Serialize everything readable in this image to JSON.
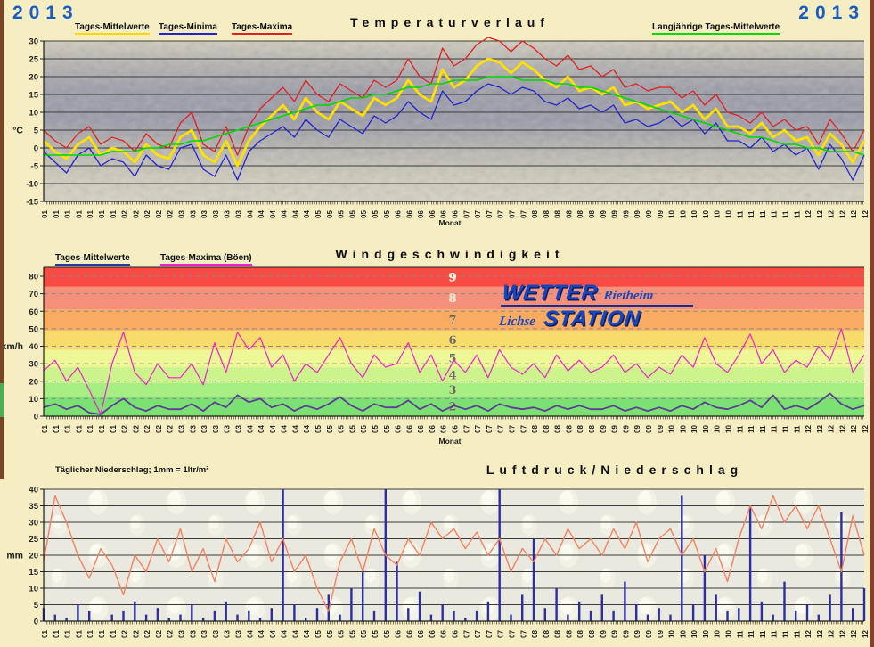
{
  "header": {
    "year_left": "2013",
    "year_right": "2013"
  },
  "titles": {
    "temperature": "Temperaturverlauf",
    "wind": "Windgeschwindigkeit",
    "pressure_precip": "Luftdruck/Niederschlag"
  },
  "legends": {
    "temp_mean": "Tages-Mittelwerte",
    "temp_min": "Tages-Minima",
    "temp_max": "Tages-Maxima",
    "temp_longterm": "Langjährige Tages-Mittelwerte",
    "wind_mean": "Tages-Mittelwerte",
    "wind_max": "Tages-Maxima (Böen)",
    "precip_note": "Täglicher Niederschlag; 1mm = 1ltr/m²"
  },
  "logo": {
    "top_main": "WETTER",
    "top_sub": "Rietheim",
    "bottom_sub": "Lichse",
    "bottom_main": "STATION"
  },
  "axis_labels": {
    "temp_y": "°C",
    "wind_y": "km/h",
    "precip_y": "mm",
    "x": "Monat"
  },
  "colors": {
    "accent_year": "#1a5cc4",
    "temp_max": "#e02020",
    "temp_min": "#2323cc",
    "temp_mean": "#ffe100",
    "temp_longterm": "#00d800",
    "wind_max": "#ee22cc",
    "wind_mean": "#5c3c94",
    "precip_bar": "#2d2da4",
    "pressure_line": "#f4825f"
  },
  "chart_data": {
    "x_tick_labels": [
      "01",
      "01",
      "01",
      "01",
      "01",
      "01",
      "01",
      "02",
      "02",
      "02",
      "02",
      "02",
      "03",
      "03",
      "03",
      "03",
      "03",
      "03",
      "04",
      "04",
      "04",
      "04",
      "04",
      "04",
      "05",
      "05",
      "05",
      "05",
      "05",
      "05",
      "05",
      "06",
      "06",
      "06",
      "06",
      "06",
      "06",
      "07",
      "07",
      "07",
      "07",
      "07",
      "07",
      "08",
      "08",
      "08",
      "08",
      "08",
      "08",
      "09",
      "09",
      "09",
      "09",
      "09",
      "09",
      "10",
      "10",
      "10",
      "10",
      "10",
      "10",
      "11",
      "11",
      "11",
      "11",
      "11",
      "11",
      "12",
      "12",
      "12",
      "12",
      "12",
      "12"
    ],
    "charts": [
      {
        "type": "line",
        "title": "Temperaturverlauf",
        "ylabel": "°C",
        "xlabel": "Monat",
        "ylim": [
          -15,
          30
        ],
        "ytick_step": 5,
        "series": [
          {
            "name": "Tages-Maxima",
            "color": "#e02020",
            "values": [
              5,
              2,
              0,
              4,
              6,
              1,
              3,
              2,
              -1,
              4,
              1,
              0,
              7,
              10,
              1,
              -1,
              6,
              -2,
              6,
              11,
              14,
              17,
              13,
              19,
              15,
              13,
              18,
              16,
              14,
              19,
              17,
              19,
              25,
              20,
              18,
              28,
              23,
              25,
              29,
              31,
              30,
              27,
              30,
              28,
              25,
              23,
              26,
              22,
              23,
              20,
              22,
              17,
              18,
              16,
              17,
              17,
              14,
              16,
              12,
              15,
              10,
              9,
              7,
              10,
              6,
              8,
              5,
              6,
              1,
              8,
              4,
              -1,
              5
            ]
          },
          {
            "name": "Tages-Minima",
            "color": "#2323cc",
            "values": [
              -1,
              -4,
              -7,
              -2,
              0,
              -5,
              -3,
              -4,
              -8,
              -2,
              -5,
              -6,
              0,
              1,
              -6,
              -8,
              -2,
              -9,
              -1,
              2,
              4,
              6,
              3,
              8,
              5,
              3,
              8,
              6,
              4,
              9,
              7,
              9,
              13,
              10,
              8,
              16,
              12,
              13,
              16,
              18,
              17,
              15,
              17,
              16,
              13,
              12,
              14,
              11,
              12,
              10,
              12,
              7,
              8,
              6,
              7,
              9,
              6,
              8,
              4,
              7,
              2,
              2,
              0,
              3,
              -1,
              1,
              -2,
              0,
              -6,
              1,
              -3,
              -9,
              -2
            ]
          },
          {
            "name": "Tages-Mittelwerte",
            "color": "#ffe100",
            "values": [
              2,
              -1,
              -3,
              1,
              3,
              -2,
              0,
              -1,
              -4,
              1,
              -2,
              -3,
              3,
              5,
              -2,
              -4,
              2,
              -5,
              2,
              6,
              9,
              12,
              8,
              14,
              10,
              8,
              13,
              11,
              9,
              14,
              12,
              14,
              19,
              15,
              13,
              22,
              17,
              19,
              23,
              25,
              24,
              21,
              24,
              22,
              19,
              17,
              20,
              16,
              17,
              15,
              17,
              12,
              13,
              11,
              12,
              13,
              10,
              12,
              8,
              11,
              6,
              6,
              4,
              7,
              3,
              5,
              2,
              3,
              -2,
              4,
              1,
              -4,
              2
            ]
          },
          {
            "name": "Langjährige Tages-Mittelwerte",
            "color": "#00d800",
            "values": [
              -2,
              -2,
              -2,
              -2,
              -2,
              -2,
              -1,
              -1,
              -1,
              0,
              0,
              1,
              1,
              2,
              2,
              3,
              4,
              5,
              6,
              7,
              8,
              9,
              10,
              11,
              12,
              12,
              13,
              14,
              14,
              15,
              15,
              16,
              17,
              17,
              18,
              18,
              19,
              19,
              19,
              20,
              20,
              20,
              19,
              19,
              19,
              18,
              18,
              17,
              17,
              16,
              15,
              14,
              13,
              12,
              11,
              10,
              9,
              8,
              7,
              6,
              5,
              4,
              3,
              3,
              2,
              1,
              1,
              0,
              0,
              -1,
              -1,
              -1,
              -2
            ]
          }
        ]
      },
      {
        "type": "line",
        "title": "Windgeschwindigkeit",
        "ylabel": "km/h",
        "xlabel": "Monat",
        "ylim": [
          0,
          85
        ],
        "ytick_step": 10,
        "beaufort_bands": [
          {
            "label": "2",
            "from": 0,
            "to": 11,
            "color": "#7be173"
          },
          {
            "label": "3",
            "from": 11,
            "to": 19,
            "color": "#a7ee82"
          },
          {
            "label": "4",
            "from": 19,
            "to": 28,
            "color": "#cdf48c"
          },
          {
            "label": "5",
            "from": 28,
            "to": 38,
            "color": "#eef795"
          },
          {
            "label": "6",
            "from": 38,
            "to": 49,
            "color": "#f8dc6b"
          },
          {
            "label": "7",
            "from": 49,
            "to": 61,
            "color": "#f8ab61"
          },
          {
            "label": "8",
            "from": 61,
            "to": 74,
            "color": "#f5907a"
          },
          {
            "label": "9",
            "from": 74,
            "to": 85,
            "color": "#f74b43"
          }
        ],
        "series": [
          {
            "name": "Tages-Maxima (Böen)",
            "color": "#ee22cc",
            "values": [
              26,
              32,
              20,
              28,
              15,
              1,
              30,
              48,
              25,
              18,
              30,
              22,
              22,
              30,
              18,
              42,
              25,
              48,
              38,
              45,
              28,
              35,
              20,
              30,
              25,
              35,
              45,
              30,
              22,
              35,
              28,
              30,
              42,
              25,
              35,
              20,
              32,
              25,
              35,
              22,
              38,
              28,
              24,
              30,
              22,
              35,
              26,
              32,
              25,
              28,
              35,
              25,
              30,
              22,
              28,
              24,
              35,
              28,
              45,
              30,
              25,
              35,
              47,
              30,
              38,
              25,
              32,
              28,
              40,
              32,
              50,
              25,
              35
            ]
          },
          {
            "name": "Tages-Mittelwerte",
            "color": "#5c3c94",
            "values": [
              5,
              7,
              4,
              6,
              2,
              1,
              6,
              10,
              5,
              3,
              6,
              4,
              4,
              7,
              3,
              8,
              5,
              12,
              8,
              10,
              5,
              7,
              3,
              6,
              4,
              7,
              11,
              6,
              3,
              7,
              5,
              5,
              9,
              4,
              7,
              3,
              6,
              4,
              6,
              3,
              7,
              5,
              4,
              5,
              3,
              6,
              4,
              6,
              4,
              4,
              6,
              3,
              5,
              3,
              5,
              3,
              6,
              4,
              8,
              5,
              4,
              6,
              9,
              5,
              12,
              4,
              6,
              4,
              8,
              13,
              7,
              4,
              6
            ]
          }
        ]
      },
      {
        "type": "bar+line",
        "title": "Luftdruck/Niederschlag",
        "ylabel": "mm",
        "ylim": [
          0,
          40
        ],
        "ytick_step": 5,
        "bars": {
          "name": "Täglicher Niederschlag",
          "color": "#2d2da4",
          "values": [
            4,
            2,
            1,
            5,
            3,
            0,
            2,
            3,
            6,
            2,
            4,
            1,
            2,
            5,
            1,
            3,
            6,
            2,
            3,
            1,
            4,
            40,
            5,
            1,
            4,
            8,
            2,
            10,
            16,
            3,
            40,
            18,
            4,
            9,
            2,
            5,
            3,
            1,
            3,
            6,
            40,
            2,
            8,
            25,
            4,
            10,
            2,
            6,
            3,
            8,
            3,
            12,
            5,
            2,
            4,
            2,
            38,
            5,
            20,
            8,
            3,
            4,
            35,
            6,
            2,
            12,
            3,
            5,
            2,
            8,
            33,
            4,
            10
          ]
        },
        "line": {
          "name": "Luftdruck",
          "color": "#f4825f",
          "values": [
            18,
            38,
            30,
            20,
            13,
            22,
            17,
            8,
            20,
            15,
            25,
            18,
            28,
            15,
            22,
            12,
            25,
            18,
            22,
            30,
            18,
            25,
            15,
            20,
            10,
            3,
            18,
            25,
            15,
            28,
            20,
            17,
            25,
            20,
            30,
            25,
            28,
            22,
            27,
            20,
            25,
            15,
            22,
            18,
            25,
            20,
            28,
            22,
            25,
            20,
            28,
            22,
            30,
            18,
            25,
            28,
            20,
            25,
            15,
            22,
            12,
            25,
            35,
            28,
            38,
            30,
            35,
            28,
            35,
            25,
            15,
            32,
            20
          ]
        }
      }
    ]
  }
}
